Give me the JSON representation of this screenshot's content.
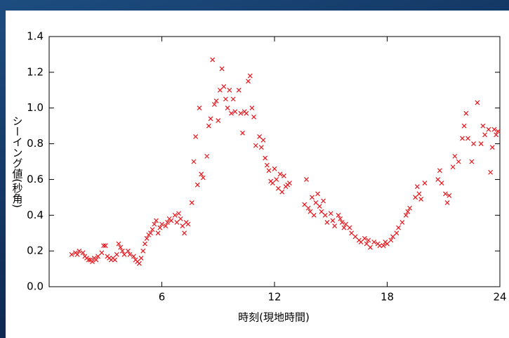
{
  "chart_data": {
    "type": "scatter",
    "xlabel": "時刻(現地時間)",
    "ylabel": "シーイング値(秒角)",
    "color": "#e8141a",
    "xlim": [
      0,
      24
    ],
    "xticks": [
      6,
      12,
      18,
      24
    ],
    "ylim": [
      0,
      1.4
    ],
    "yticks": [
      {
        "value": 0,
        "label": "0.0"
      },
      {
        "value": 0.2,
        "label": "0.2"
      },
      {
        "value": 0.4,
        "label": "0.4"
      },
      {
        "value": 0.6,
        "label": "0.6"
      },
      {
        "value": 0.8,
        "label": "0.8"
      },
      {
        "value": 1,
        "label": "1.0"
      },
      {
        "value": 1.2,
        "label": "1.2"
      },
      {
        "value": 1.4,
        "label": "1.4"
      }
    ],
    "x": [
      1.2,
      1.4,
      1.5,
      1.6,
      1.8,
      1.9,
      2.0,
      2.1,
      2.2,
      2.3,
      2.4,
      2.5,
      2.6,
      2.8,
      2.9,
      3.0,
      3.1,
      3.2,
      3.3,
      3.4,
      3.5,
      3.6,
      3.7,
      3.8,
      3.9,
      4.0,
      4.2,
      4.3,
      4.5,
      4.6,
      4.7,
      4.8,
      4.9,
      5.0,
      5.1,
      5.2,
      5.3,
      5.4,
      5.5,
      5.6,
      5.7,
      5.8,
      5.9,
      6.0,
      6.2,
      6.3,
      6.4,
      6.5,
      6.7,
      6.8,
      6.9,
      7.0,
      7.1,
      7.2,
      7.3,
      7.4,
      7.6,
      7.7,
      7.8,
      7.9,
      8.0,
      8.1,
      8.2,
      8.4,
      8.5,
      8.6,
      8.7,
      8.8,
      8.9,
      9.0,
      9.1,
      9.2,
      9.3,
      9.4,
      9.5,
      9.6,
      9.7,
      9.8,
      9.9,
      10.1,
      10.2,
      10.3,
      10.4,
      10.5,
      10.6,
      10.7,
      10.8,
      10.9,
      11.0,
      11.2,
      11.3,
      11.4,
      11.5,
      11.6,
      11.7,
      11.8,
      11.9,
      12.0,
      12.1,
      12.2,
      12.3,
      12.4,
      12.5,
      12.6,
      12.7,
      12.8,
      13.6,
      13.7,
      13.8,
      13.9,
      14.0,
      14.1,
      14.2,
      14.3,
      14.4,
      14.5,
      14.6,
      14.7,
      14.8,
      15.0,
      15.1,
      15.2,
      15.4,
      15.5,
      15.6,
      15.7,
      15.8,
      16.0,
      16.1,
      16.3,
      16.5,
      16.6,
      16.8,
      16.9,
      17.0,
      17.1,
      17.3,
      17.5,
      17.6,
      17.8,
      17.9,
      18.0,
      18.2,
      18.3,
      18.5,
      18.6,
      18.8,
      19.0,
      19.1,
      19.2,
      19.5,
      19.6,
      19.7,
      19.8,
      20.0,
      20.7,
      20.8,
      20.9,
      21.1,
      21.2,
      21.3,
      21.5,
      21.6,
      21.8,
      22.0,
      22.1,
      22.2,
      22.3,
      22.5,
      22.6,
      22.8,
      23.0,
      23.1,
      23.2,
      23.4,
      23.5,
      23.6,
      23.7,
      23.8,
      23.9
    ],
    "values": [
      0.18,
      0.19,
      0.18,
      0.2,
      0.19,
      0.17,
      0.16,
      0.15,
      0.15,
      0.14,
      0.16,
      0.15,
      0.17,
      0.19,
      0.23,
      0.23,
      0.17,
      0.16,
      0.15,
      0.16,
      0.15,
      0.18,
      0.24,
      0.22,
      0.2,
      0.18,
      0.2,
      0.18,
      0.17,
      0.15,
      0.14,
      0.13,
      0.16,
      0.2,
      0.24,
      0.27,
      0.29,
      0.3,
      0.32,
      0.35,
      0.37,
      0.3,
      0.33,
      0.35,
      0.34,
      0.36,
      0.38,
      0.37,
      0.4,
      0.36,
      0.41,
      0.38,
      0.34,
      0.3,
      0.36,
      0.35,
      0.47,
      0.7,
      0.84,
      0.57,
      1.0,
      0.63,
      0.61,
      0.73,
      0.9,
      0.94,
      1.27,
      1.02,
      1.04,
      0.93,
      1.1,
      1.22,
      1.12,
      1.05,
      1.0,
      1.1,
      0.97,
      1.05,
      0.98,
      1.1,
      0.97,
      0.86,
      0.98,
      0.97,
      1.15,
      1.18,
      1.0,
      0.95,
      0.79,
      0.84,
      0.78,
      0.82,
      0.72,
      0.68,
      0.65,
      0.59,
      0.58,
      0.66,
      0.6,
      0.55,
      0.63,
      0.53,
      0.62,
      0.56,
      0.57,
      0.58,
      0.46,
      0.6,
      0.44,
      0.42,
      0.5,
      0.4,
      0.47,
      0.52,
      0.45,
      0.42,
      0.48,
      0.4,
      0.36,
      0.41,
      0.37,
      0.34,
      0.4,
      0.38,
      0.36,
      0.33,
      0.35,
      0.33,
      0.3,
      0.28,
      0.26,
      0.25,
      0.27,
      0.24,
      0.26,
      0.22,
      0.25,
      0.24,
      0.23,
      0.23,
      0.25,
      0.24,
      0.26,
      0.28,
      0.3,
      0.33,
      0.36,
      0.4,
      0.42,
      0.44,
      0.5,
      0.56,
      0.52,
      0.49,
      0.58,
      0.6,
      0.65,
      0.58,
      0.52,
      0.47,
      0.51,
      0.67,
      0.73,
      0.7,
      0.83,
      0.9,
      0.97,
      0.83,
      0.7,
      0.8,
      1.03,
      0.8,
      0.9,
      0.85,
      0.88,
      0.64,
      0.78,
      0.88,
      0.85,
      0.87
    ]
  }
}
